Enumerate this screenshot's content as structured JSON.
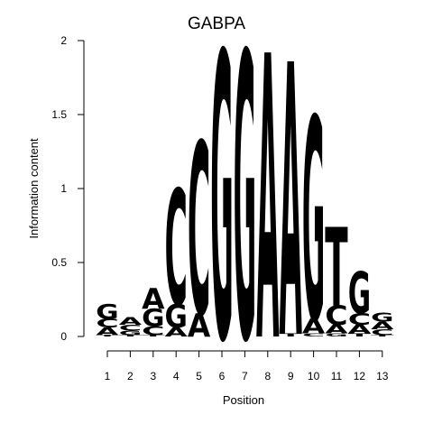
{
  "chart_data": {
    "type": "sequence-logo",
    "title": "GABPA",
    "xlabel": "Position",
    "ylabel": "Information content",
    "ylim": [
      0,
      2
    ],
    "y_ticks": [
      0,
      0.5,
      1,
      1.5,
      2
    ],
    "y_tick_labels": [
      "0",
      "0.5",
      "1",
      "1.5",
      "2"
    ],
    "positions": [
      "1",
      "2",
      "3",
      "4",
      "5",
      "6",
      "7",
      "8",
      "9",
      "10",
      "11",
      "12",
      "13"
    ],
    "colors": {
      "A": "#00dd00",
      "C": "#0000ee",
      "G": "#ffa500",
      "T": "#ff0000"
    },
    "columns": [
      [
        {
          "letter": "T",
          "value": 0.01
        },
        {
          "letter": "A",
          "value": 0.05
        },
        {
          "letter": "C",
          "value": 0.06
        },
        {
          "letter": "G",
          "value": 0.1
        }
      ],
      [
        {
          "letter": "T",
          "value": 0.01
        },
        {
          "letter": "G",
          "value": 0.03
        },
        {
          "letter": "C",
          "value": 0.04
        },
        {
          "letter": "A",
          "value": 0.05
        }
      ],
      [
        {
          "letter": "T",
          "value": 0.01
        },
        {
          "letter": "C",
          "value": 0.06
        },
        {
          "letter": "G",
          "value": 0.12
        },
        {
          "letter": "A",
          "value": 0.14
        }
      ],
      [
        {
          "letter": "A",
          "value": 0.06
        },
        {
          "letter": "G",
          "value": 0.16
        },
        {
          "letter": "C",
          "value": 0.78
        }
      ],
      [
        {
          "letter": "A",
          "value": 0.16
        },
        {
          "letter": "C",
          "value": 1.16
        }
      ],
      [
        {
          "letter": "G",
          "value": 1.93
        }
      ],
      [
        {
          "letter": "G",
          "value": 1.93
        }
      ],
      [
        {
          "letter": "A",
          "value": 1.92
        }
      ],
      [
        {
          "letter": "T",
          "value": 0.02
        },
        {
          "letter": "A",
          "value": 1.84
        }
      ],
      [
        {
          "letter": "C",
          "value": 0.02
        },
        {
          "letter": "A",
          "value": 0.1
        },
        {
          "letter": "G",
          "value": 1.37
        }
      ],
      [
        {
          "letter": "G",
          "value": 0.02
        },
        {
          "letter": "A",
          "value": 0.06
        },
        {
          "letter": "C",
          "value": 0.13
        },
        {
          "letter": "T",
          "value": 0.53
        }
      ],
      [
        {
          "letter": "T",
          "value": 0.02
        },
        {
          "letter": "A",
          "value": 0.06
        },
        {
          "letter": "C",
          "value": 0.08
        },
        {
          "letter": "G",
          "value": 0.28
        }
      ],
      [
        {
          "letter": "T",
          "value": 0.01
        },
        {
          "letter": "C",
          "value": 0.04
        },
        {
          "letter": "A",
          "value": 0.05
        },
        {
          "letter": "G",
          "value": 0.06
        }
      ]
    ]
  }
}
